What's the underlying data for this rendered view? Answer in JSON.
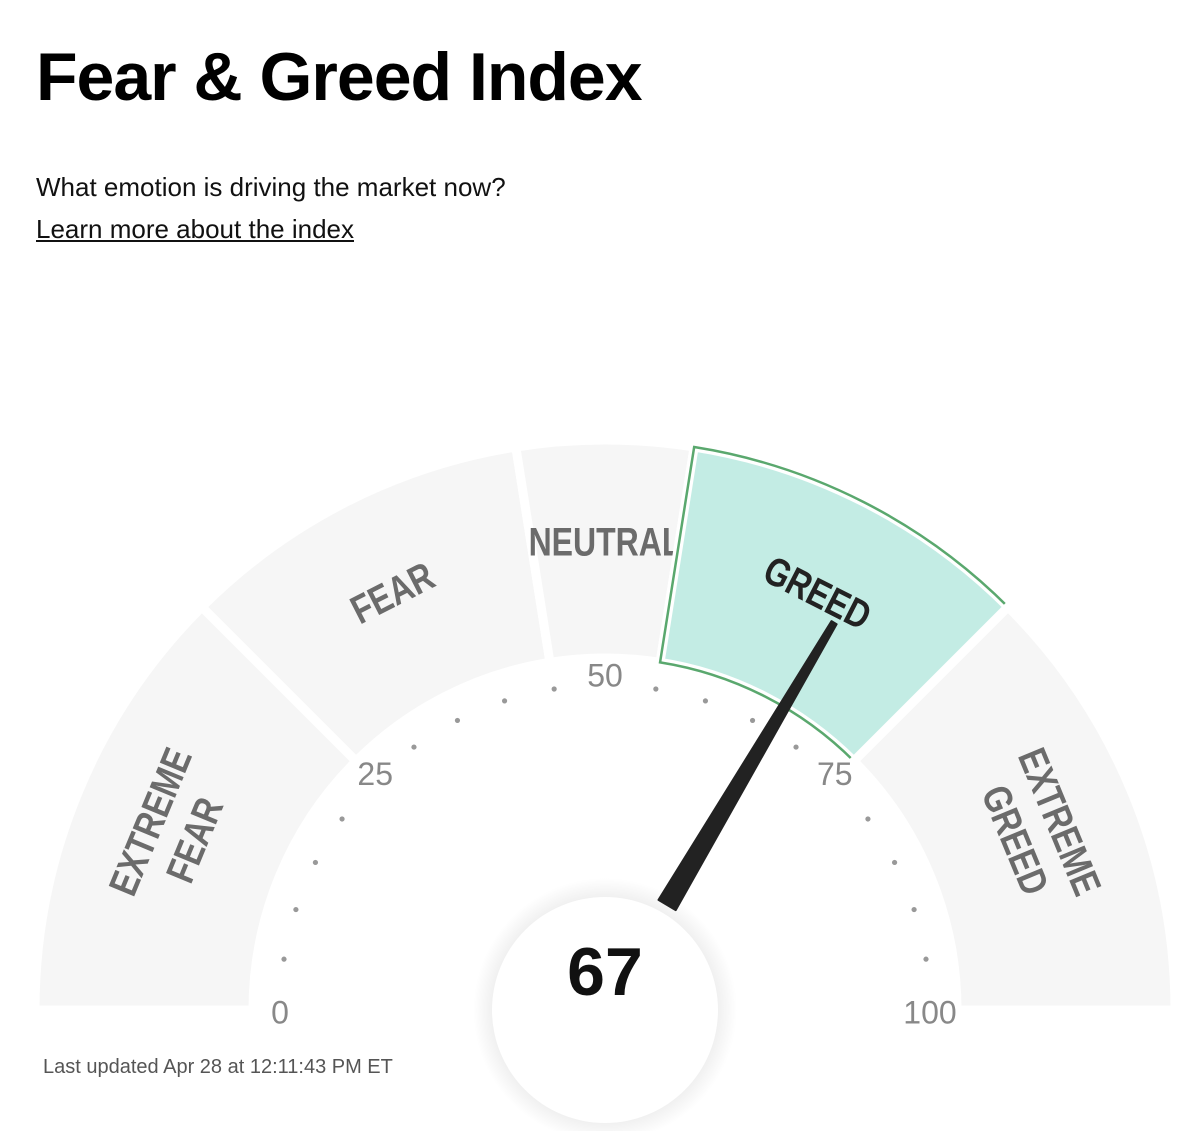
{
  "header": {
    "title": "Fear & Greed Index",
    "subtitle": "What emotion is driving the market now?",
    "link": "Learn more about the index"
  },
  "chart_data": {
    "type": "gauge",
    "value": 67,
    "lim": [
      0,
      100
    ],
    "ticks": [
      0,
      25,
      50,
      75,
      100
    ],
    "segments": [
      {
        "label": [
          "EXTREME",
          "FEAR"
        ],
        "from": 0,
        "to": 25
      },
      {
        "label": [
          "FEAR"
        ],
        "from": 25,
        "to": 45
      },
      {
        "label": [
          "NEUTRAL"
        ],
        "from": 45,
        "to": 55
      },
      {
        "label": [
          "GREED"
        ],
        "from": 55,
        "to": 75,
        "active": true
      },
      {
        "label": [
          "EXTREME",
          "GREED"
        ],
        "from": 75,
        "to": 100
      }
    ],
    "colors": {
      "segment": "#f6f6f6",
      "active": "#c3ece4",
      "active_border": "#5aa86e",
      "needle": "#222222"
    }
  },
  "footer": "Last updated Apr 28 at 12:11:43 PM ET"
}
